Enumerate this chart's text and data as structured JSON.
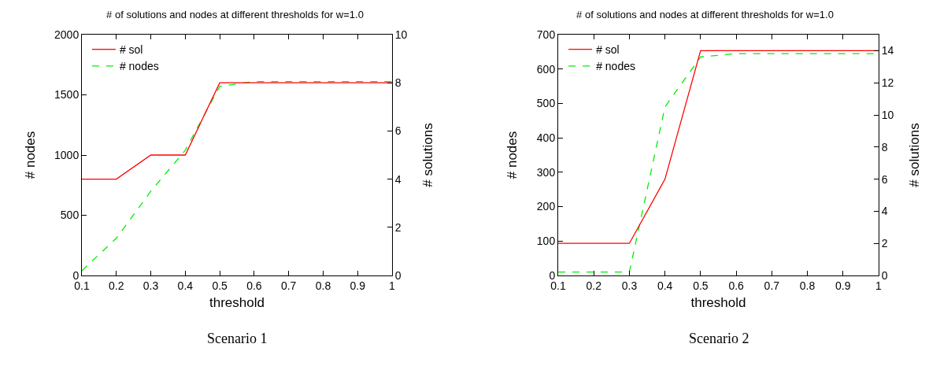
{
  "chart_data": [
    {
      "type": "line",
      "title": "# of solutions and nodes at different thresholds for w=1.0",
      "xlabel": "threshold",
      "ylabel": "# nodes",
      "y2label": "# solutions",
      "x": [
        0.1,
        0.2,
        0.3,
        0.4,
        0.5,
        0.6,
        0.7,
        0.8,
        0.9,
        1
      ],
      "xlim": [
        0.1,
        1
      ],
      "xticks": [
        0.1,
        0.2,
        0.3,
        0.4,
        0.5,
        0.6,
        0.7,
        0.8,
        0.9,
        1
      ],
      "ylim": [
        0,
        2000
      ],
      "yticks": [
        0,
        500,
        1000,
        1500,
        2000
      ],
      "y2lim": [
        0,
        10
      ],
      "y2ticks": [
        0,
        2,
        4,
        6,
        8,
        10
      ],
      "grid": false,
      "legend": "top left",
      "marker": "none",
      "series": [
        {
          "name": "# sol",
          "color": "#ff0000",
          "axis": "y2",
          "line_style": "solid",
          "values": [
            4,
            4,
            5,
            5,
            8,
            8,
            8,
            8,
            8,
            8
          ]
        },
        {
          "name": "# nodes",
          "color": "#00ee00",
          "line_style": "dashed",
          "values": [
            40,
            310,
            700,
            1040,
            1570,
            1610,
            1610,
            1610,
            1610,
            1610
          ]
        }
      ],
      "annotations": [
        "Scenario 1"
      ]
    },
    {
      "type": "line",
      "title": "# of solutions and nodes at different thresholds for w=1.0",
      "xlabel": "threshold",
      "ylabel": "# nodes",
      "y2label": "# solutions",
      "x": [
        0.1,
        0.2,
        0.3,
        0.4,
        0.5,
        0.6,
        0.7,
        0.8,
        0.9,
        1
      ],
      "xlim": [
        0.1,
        1
      ],
      "xticks": [
        0.1,
        0.2,
        0.3,
        0.4,
        0.5,
        0.6,
        0.7,
        0.8,
        0.9,
        1
      ],
      "ylim": [
        0,
        700
      ],
      "yticks": [
        0,
        100,
        200,
        300,
        400,
        500,
        600,
        700
      ],
      "y2lim": [
        0,
        15
      ],
      "y2ticks": [
        0,
        2,
        4,
        6,
        8,
        10,
        12,
        14
      ],
      "grid": false,
      "legend": "top left",
      "marker": "none",
      "series": [
        {
          "name": "# sol",
          "color": "#ff0000",
          "axis": "y2",
          "line_style": "solid",
          "values": [
            2,
            2,
            2,
            6,
            14,
            14,
            14,
            14,
            14,
            14
          ]
        },
        {
          "name": "# nodes",
          "color": "#00ee00",
          "line_style": "dashed",
          "values": [
            10,
            10,
            10,
            490,
            635,
            645,
            645,
            645,
            645,
            645
          ]
        }
      ],
      "annotations": [
        "Scenario 2"
      ]
    }
  ]
}
